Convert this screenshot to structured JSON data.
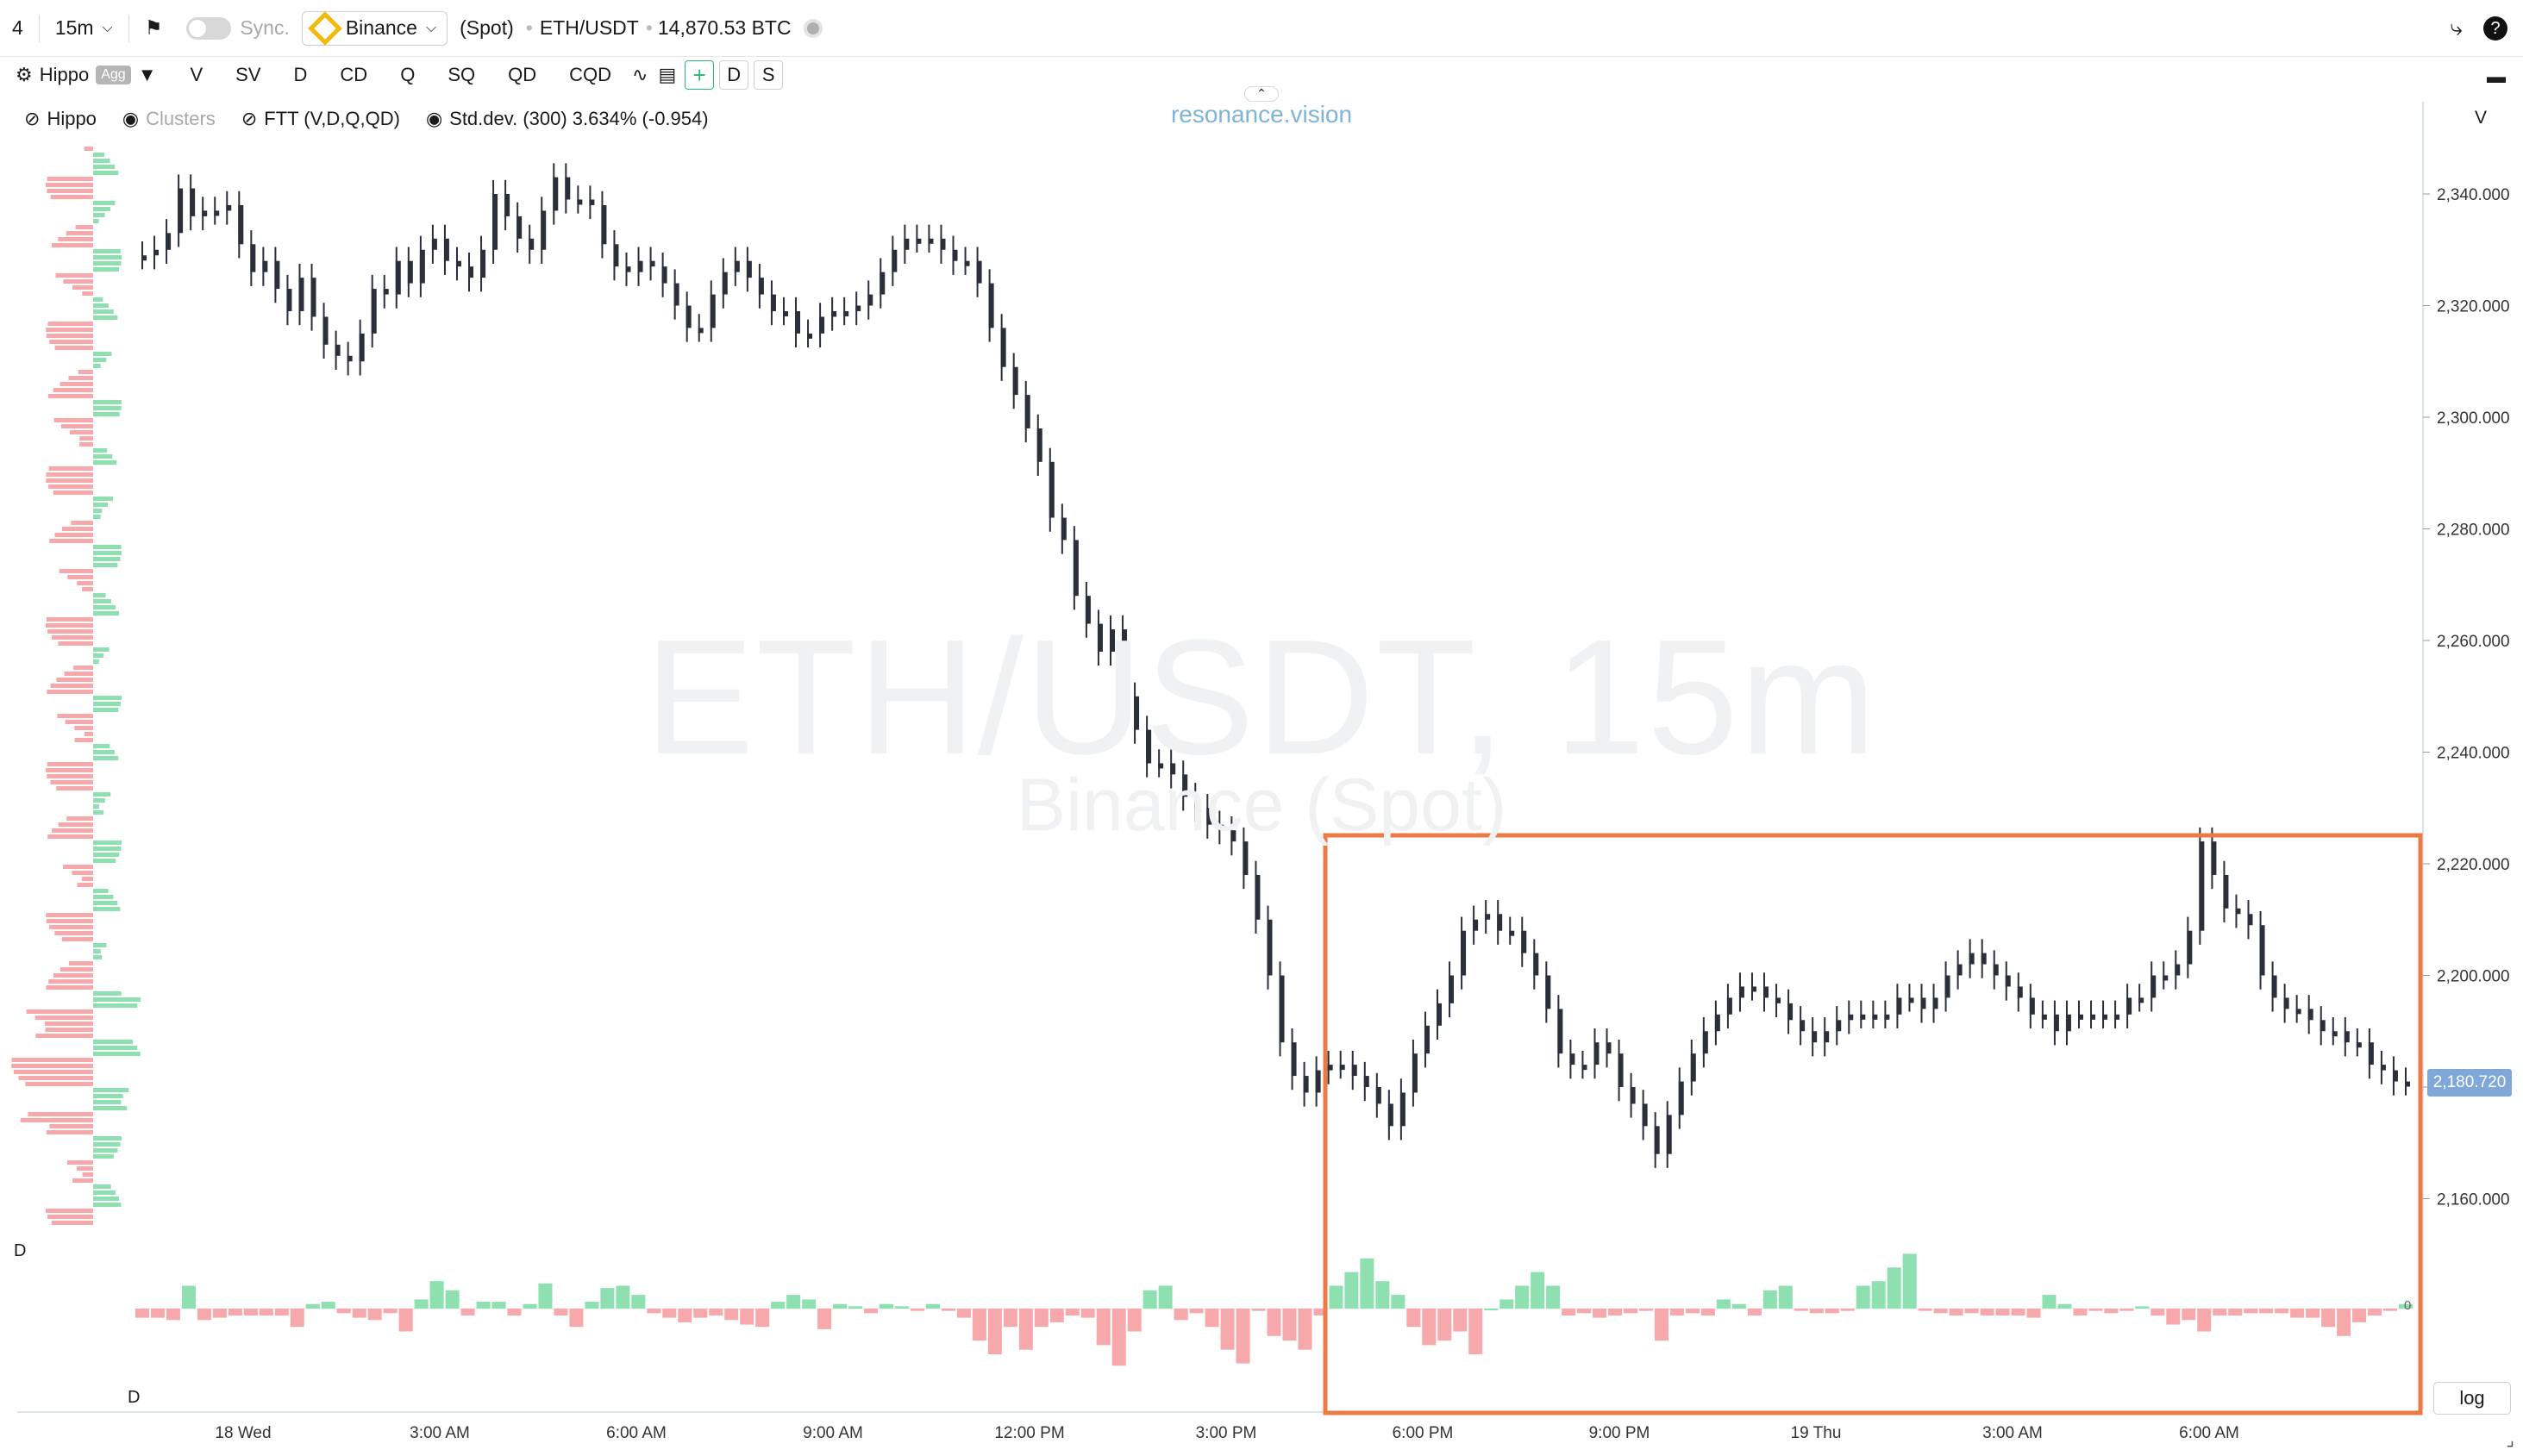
{
  "toolbar": {
    "layout_count": "4",
    "timeframe": "15m",
    "sync_label": "Sync.",
    "exchange": "Binance",
    "market": "(Spot)",
    "symbol": "ETH/USDT",
    "volume": "14,870.53 BTC"
  },
  "toolbar2": {
    "preset": "Hippo",
    "agg_badge": "Agg",
    "buttons": [
      "V",
      "SV",
      "D",
      "CD",
      "Q",
      "SQ",
      "QD",
      "CQD"
    ],
    "d_btn": "D",
    "s_btn": "S",
    "plus_btn": "+"
  },
  "indicators": {
    "hippo": "Hippo",
    "clusters": "Clusters",
    "ftt": "FTT (V,D,Q,QD)",
    "stddev": "Std.dev. (300) 3.634% (-0.954)"
  },
  "brand": "resonance.vision",
  "watermark": {
    "line1": "ETH/USDT, 15m",
    "line2": "Binance (Spot)"
  },
  "price_axis": {
    "label": "V",
    "ticks": [
      "2,340.000",
      "2,320.000",
      "2,300.000",
      "2,280.000",
      "2,260.000",
      "2,240.000",
      "2,220.000",
      "2,200.000",
      "2,180.000",
      "2,160.000"
    ],
    "current_price": "2,180.720",
    "delta_zero": "0"
  },
  "time_axis": [
    "18 Wed",
    "3:00 AM",
    "6:00 AM",
    "9:00 AM",
    "12:00 PM",
    "3:00 PM",
    "6:00 PM",
    "9:00 PM",
    "19 Thu",
    "3:00 AM",
    "6:00 AM"
  ],
  "pane_labels": {
    "upper": "D",
    "lower": "D"
  },
  "log_btn": "log",
  "colors": {
    "up": "#8ee0b1",
    "down": "#f6a8ab",
    "highlight": "#ec7a45",
    "price_tag": "#7fa8d8",
    "candle": "#2a2f3a"
  },
  "chart_data": {
    "type": "line",
    "title": "ETH/USDT, 15m",
    "ylim": [
      2150,
      2352
    ],
    "series": [
      {
        "name": "ETH/USDT",
        "x_start": "18 Wed 00:00",
        "interval": "15m",
        "values": [
          2329,
          2330,
          2333,
          2341,
          2336,
          2337,
          2337,
          2338,
          2331,
          2326,
          2328,
          2323,
          2319,
          2325,
          2318,
          2313,
          2311,
          2310,
          2315,
          2323,
          2322,
          2328,
          2324,
          2330,
          2332,
          2328,
          2327,
          2325,
          2330,
          2340,
          2336,
          2332,
          2330,
          2337,
          2343,
          2339,
          2339,
          2338,
          2331,
          2327,
          2326,
          2328,
          2327,
          2324,
          2320,
          2316,
          2316,
          2322,
          2326,
          2328,
          2325,
          2322,
          2319,
          2319,
          2315,
          2315,
          2318,
          2319,
          2319,
          2320,
          2322,
          2326,
          2330,
          2332,
          2332,
          2332,
          2330,
          2328,
          2328,
          2324,
          2316,
          2309,
          2304,
          2298,
          2292,
          2282,
          2278,
          2268,
          2263,
          2258,
          2262,
          2250,
          2244,
          2238,
          2238,
          2236,
          2232,
          2230,
          2227,
          2226,
          2224,
          2218,
          2210,
          2200,
          2188,
          2182,
          2179,
          2183,
          2184,
          2184,
          2182,
          2180,
          2177,
          2173,
          2179,
          2186,
          2191,
          2195,
          2200,
          2208,
          2210,
          2211,
          2208,
          2208,
          2204,
          2200,
          2194,
          2186,
          2184,
          2184,
          2188,
          2186,
          2180,
          2177,
          2173,
          2168,
          2175,
          2181,
          2186,
          2190,
          2193,
          2196,
          2198,
          2198,
          2196,
          2195,
          2192,
          2190,
          2188,
          2190,
          2192,
          2193,
          2193,
          2193,
          2193,
          2196,
          2196,
          2194,
          2196,
          2200,
          2202,
          2204,
          2202,
          2200,
          2198,
          2196,
          2193,
          2193,
          2190,
          2193,
          2193,
          2193,
          2193,
          2193,
          2196,
          2196,
          2200,
          2200,
          2202,
          2208,
          2224,
          2218,
          2212,
          2211,
          2209,
          2200,
          2196,
          2194,
          2194,
          2192,
          2190,
          2190,
          2188,
          2188,
          2184,
          2183,
          2181,
          2181
        ]
      },
      {
        "name": "Delta",
        "values": [
          -4,
          -4,
          -5,
          10,
          -5,
          -4,
          -3,
          -3,
          -3,
          -3,
          -8,
          2,
          3,
          -2,
          -4,
          -5,
          -2,
          -10,
          4,
          12,
          8,
          -3,
          3,
          3,
          -3,
          2,
          11,
          -3,
          -8,
          3,
          9,
          10,
          6,
          -2,
          -4,
          -6,
          -4,
          -3,
          -5,
          -7,
          -8,
          3,
          6,
          4,
          -9,
          2,
          1,
          -2,
          2,
          1,
          -1,
          2,
          -1,
          -4,
          -14,
          -20,
          -8,
          -18,
          -8,
          -6,
          -3,
          -4,
          -16,
          -25,
          -10,
          8,
          10,
          -5,
          -2,
          -8,
          -18,
          -24,
          -1,
          -12,
          -14,
          -18,
          -3,
          10,
          16,
          22,
          12,
          6,
          -8,
          -16,
          -14,
          -10,
          -20,
          0,
          4,
          10,
          16,
          10,
          -3,
          -2,
          -4,
          -3,
          -2,
          -1,
          -14,
          -3,
          -2,
          -3,
          4,
          2,
          -3,
          8,
          10,
          -1,
          -2,
          -2,
          -1,
          10,
          12,
          18,
          24,
          -1,
          -2,
          -3,
          -2,
          -3,
          -3,
          -3,
          -4,
          6,
          2,
          -3,
          -1,
          -2,
          -1,
          1,
          -3,
          -7,
          -5,
          -10,
          -3,
          -3,
          -2,
          -2,
          -2,
          -4,
          -4,
          -8,
          -12,
          -6,
          -3,
          -1,
          2
        ]
      }
    ]
  }
}
